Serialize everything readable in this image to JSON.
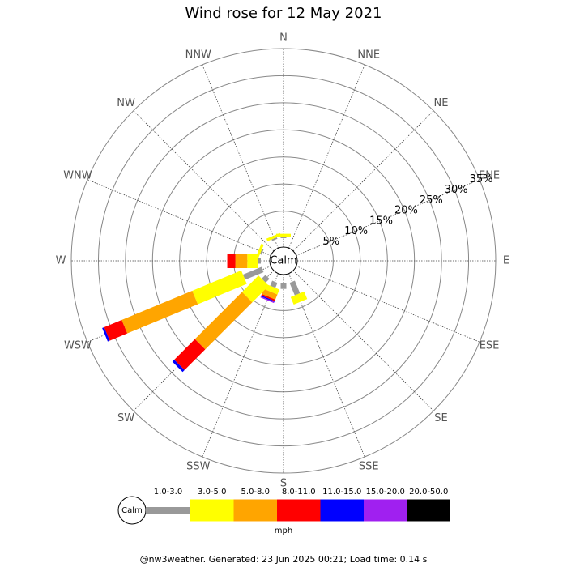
{
  "chart_data": {
    "type": "windrose",
    "title": "Wind rose for 12 May 2021",
    "center_label": "Calm",
    "directions": [
      "N",
      "NNE",
      "NE",
      "ENE",
      "E",
      "ESE",
      "SE",
      "SSE",
      "S",
      "SSW",
      "SW",
      "WSW",
      "W",
      "WNW",
      "NW",
      "NNW"
    ],
    "rlim": [
      0,
      35
    ],
    "rticks": [
      {
        "value": 5,
        "label": "5%"
      },
      {
        "value": 10,
        "label": "10%"
      },
      {
        "value": 15,
        "label": "15%"
      },
      {
        "value": 20,
        "label": "20%"
      },
      {
        "value": 25,
        "label": "25%"
      },
      {
        "value": 30,
        "label": "30%"
      },
      {
        "value": 35,
        "label": "35%"
      }
    ],
    "series": [
      {
        "name": "1.0-3.0",
        "color": "#999999",
        "values": [
          0.3,
          0,
          0,
          0,
          0,
          0,
          0,
          2.5,
          1.0,
          1.0,
          1.0,
          3.7,
          0.5,
          0.3,
          0,
          0.3
        ]
      },
      {
        "name": "3.0-5.0",
        "color": "#ffff00",
        "values": [
          0.5,
          0,
          0,
          0,
          0,
          0,
          0,
          1.5,
          0,
          1.0,
          4.3,
          9.8,
          2.0,
          0.5,
          0,
          0.5
        ]
      },
      {
        "name": "5.0-8.0",
        "color": "#ffa500",
        "values": [
          0,
          0,
          0,
          0,
          0,
          0,
          0,
          0,
          0,
          1.0,
          12.3,
          14.1,
          2.2,
          0,
          0,
          0
        ]
      },
      {
        "name": "8.0-11.0",
        "color": "#ff0000",
        "values": [
          0,
          0,
          0,
          0,
          0,
          0,
          0,
          0,
          0,
          0.3,
          5.4,
          3.5,
          1.5,
          0,
          0,
          0
        ]
      },
      {
        "name": "11.0-15.0",
        "color": "#0000ff",
        "values": [
          0,
          0,
          0,
          0,
          0,
          0,
          0,
          0,
          0,
          0.2,
          0.5,
          0.4,
          0,
          0,
          0,
          0
        ]
      },
      {
        "name": "15.0-20.0",
        "color": "#a020f0",
        "values": [
          0,
          0,
          0,
          0,
          0,
          0,
          0,
          0,
          0,
          0.2,
          0,
          0,
          0,
          0,
          0,
          0
        ]
      },
      {
        "name": "20.0-50.0",
        "color": "#000000",
        "values": [
          0,
          0,
          0,
          0,
          0,
          0,
          0,
          0,
          0,
          0,
          0,
          0,
          0,
          0,
          0,
          0
        ]
      }
    ],
    "unit_label": "mph",
    "footer": "@nw3weather. Generated: 23 Jun 2025 00:21; Load time: 0.14 s"
  }
}
